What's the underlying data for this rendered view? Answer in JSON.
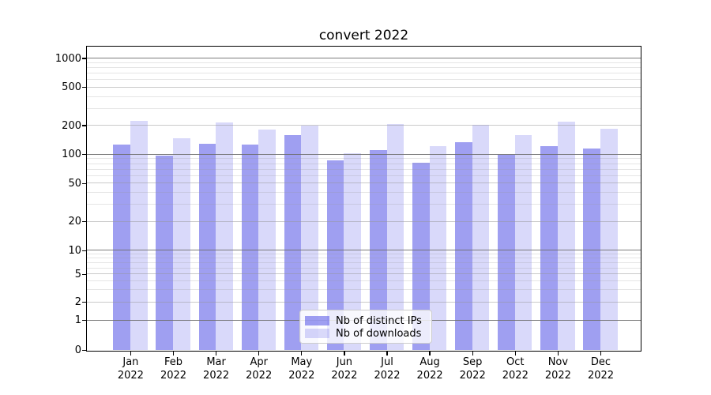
{
  "chart_data": {
    "type": "bar",
    "title": "convert 2022",
    "xlabel": "",
    "ylabel": "",
    "categories": [
      "Jan",
      "Feb",
      "Mar",
      "Apr",
      "May",
      "Jun",
      "Jul",
      "Aug",
      "Sep",
      "Oct",
      "Nov",
      "Dec"
    ],
    "xtick_year": "2022",
    "series": [
      {
        "name": "Nb of distinct IPs",
        "color": "#5050e6",
        "alpha": 0.55,
        "rendered_color": "#a4a4f0",
        "values": [
          127,
          97,
          129,
          126,
          158,
          87,
          110,
          81,
          134,
          98,
          122,
          114
        ]
      },
      {
        "name": "Nb of downloads",
        "color": "#5050e6",
        "alpha": 0.22,
        "rendered_color": "#d9d9f7",
        "values": [
          221,
          147,
          216,
          181,
          200,
          102,
          207,
          121,
          201,
          158,
          219,
          183
        ]
      }
    ],
    "yscale": "symlog",
    "yticks": [
      1000,
      500,
      200,
      100,
      50,
      20,
      10,
      5,
      2,
      1,
      0
    ],
    "yticks_minor": [
      900,
      800,
      700,
      600,
      400,
      300,
      90,
      80,
      70,
      60,
      40,
      30,
      9,
      8,
      7,
      6,
      4,
      3
    ],
    "ylim": [
      0,
      1300
    ],
    "grid": "both",
    "legend_position": "lower center",
    "grid_colors": {
      "decade_major": "#6e6e6e",
      "labeled_major": "#969696",
      "minor": "#969696"
    }
  }
}
